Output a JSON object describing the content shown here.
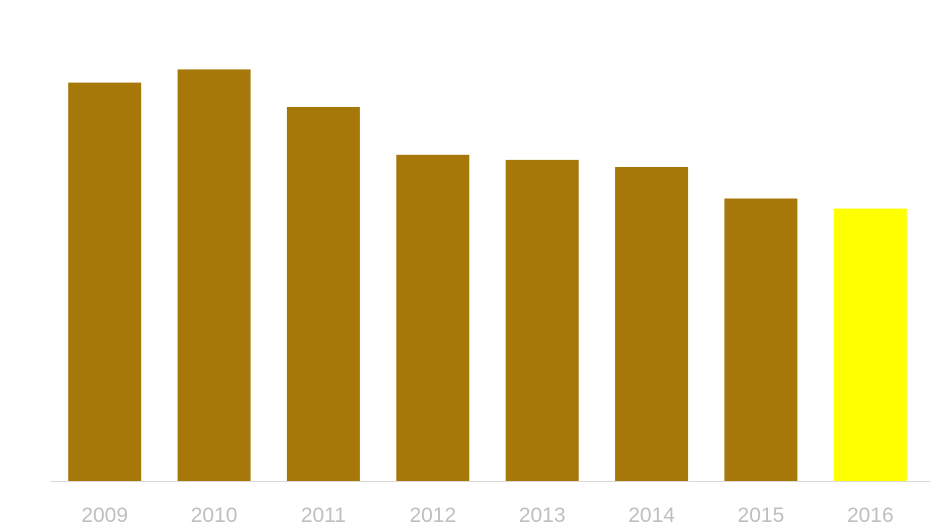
{
  "chart_data": {
    "type": "bar",
    "title": "",
    "xlabel": "",
    "ylabel": "",
    "categories": [
      "2009",
      "2010",
      "2011",
      "2012",
      "2013",
      "2014",
      "2015",
      "2016"
    ],
    "values": [
      392,
      405,
      368,
      321,
      316,
      309,
      278,
      268
    ],
    "ylim": [
      0,
      430
    ],
    "grid": false,
    "legend": "none",
    "colors": {
      "default_bar": "#a6780a",
      "highlight_bar": "#ffff00",
      "axis": "#d9d9d9",
      "tick_label": "#bfbfbf"
    },
    "highlight_category": "2016"
  }
}
